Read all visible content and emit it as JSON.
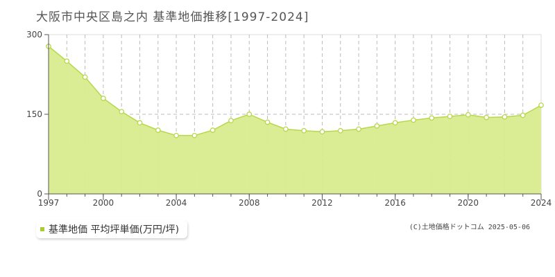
{
  "header": {
    "title": "大阪市中央区島之内  基準地価推移[1997-2024]"
  },
  "legend": {
    "label": "基準地価 平均坪単価(万円/坪)"
  },
  "credit": "(C)土地価格ドットコム 2025-05-06",
  "colors": {
    "fill": "#d9ec8e",
    "line": "#b6d84a",
    "marker": "#ffffff",
    "legend_swatch": "#a8cc32",
    "grid": "#bbbbbb"
  },
  "chart_data": {
    "type": "area",
    "title": "大阪市中央区島之内  基準地価推移[1997-2024]",
    "xlabel": "",
    "ylabel": "",
    "series": [
      {
        "name": "基準地価 平均坪単価(万円/坪)",
        "x": [
          1997,
          1998,
          1999,
          2000,
          2001,
          2002,
          2003,
          2004,
          2005,
          2006,
          2007,
          2008,
          2009,
          2010,
          2011,
          2012,
          2013,
          2014,
          2015,
          2016,
          2017,
          2018,
          2019,
          2020,
          2021,
          2022,
          2023,
          2024
        ],
        "values": [
          278,
          250,
          220,
          180,
          155,
          134,
          120,
          110,
          110,
          120,
          138,
          150,
          135,
          122,
          119,
          117,
          119,
          122,
          128,
          134,
          139,
          143,
          146,
          149,
          144,
          145,
          148,
          167
        ]
      }
    ],
    "xlim": [
      1997,
      2024
    ],
    "ylim": [
      0,
      300
    ],
    "yticks": [
      0,
      150,
      300
    ],
    "xticks": [
      1997,
      2000,
      2004,
      2008,
      2012,
      2016,
      2020,
      2024
    ],
    "grid": true
  }
}
